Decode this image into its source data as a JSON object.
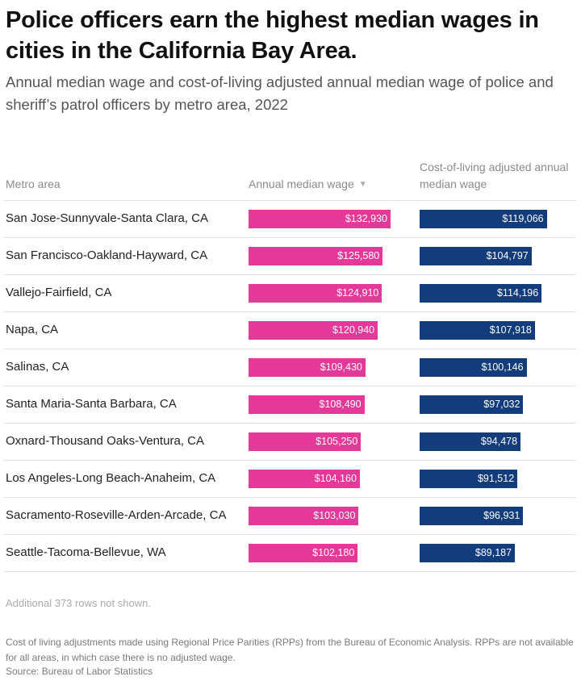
{
  "title": "Police officers earn the highest median wages in cities in the California Bay Area.",
  "subtitle": "Annual median wage and cost-of-living adjusted annual median wage of police and sheriff’s patrol officers by metro area, 2022",
  "columns": {
    "metro": "Metro area",
    "wage": "Annual median wage",
    "adjusted": "Cost-of-living adjusted annual median wage",
    "sort_icon": "▼"
  },
  "chart_data": {
    "type": "table",
    "title": "Police officers earn the highest median wages in cities in the California Bay Area.",
    "categories": [
      "San Jose-Sunnyvale-Santa Clara, CA",
      "San Francisco-Oakland-Hayward, CA",
      "Vallejo-Fairfield, CA",
      "Napa, CA",
      "Salinas, CA",
      "Santa Maria-Santa Barbara, CA",
      "Oxnard-Thousand Oaks-Ventura, CA",
      "Los Angeles-Long Beach-Anaheim, CA",
      "Sacramento-Roseville-Arden-Arcade, CA",
      "Seattle-Tacoma-Bellevue, WA"
    ],
    "series": [
      {
        "name": "Annual median wage",
        "color": "#e5399a",
        "values": [
          132930,
          125580,
          124910,
          120940,
          109430,
          108490,
          105250,
          104160,
          103030,
          102180
        ],
        "labels": [
          "$132,930",
          "$125,580",
          "$124,910",
          "$120,940",
          "$109,430",
          "$108,490",
          "$105,250",
          "$104,160",
          "$103,030",
          "$102,180"
        ]
      },
      {
        "name": "Cost-of-living adjusted annual median wage",
        "color": "#123c7c",
        "values": [
          119066,
          104797,
          114196,
          107918,
          100146,
          97032,
          94478,
          91512,
          96931,
          89187
        ],
        "labels": [
          "$119,066",
          "$104,797",
          "$114,196",
          "$107,918",
          "$100,146",
          "$97,032",
          "$94,478",
          "$91,512",
          "$96,931",
          "$89,187"
        ]
      }
    ],
    "xlim": [
      0,
      132930
    ]
  },
  "footer": {
    "rows_note": "Additional 373 rows not shown.",
    "note": "Cost of living adjustments made using Regional Price Parities (RPPs) from the Bureau of Economic Analysis. RPPs are not available for all areas, in which case there is no adjusted wage.",
    "source": "Source: Bureau of Labor Statistics"
  }
}
